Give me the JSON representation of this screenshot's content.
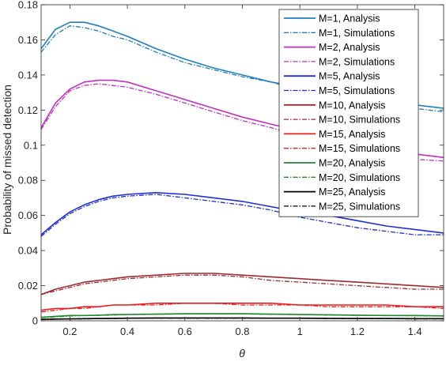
{
  "chart_data": {
    "type": "line",
    "xlabel": "θ",
    "ylabel": "Probability of missed detection",
    "xlim": [
      0.1,
      1.5
    ],
    "ylim": [
      0,
      0.18
    ],
    "x_ticks": [
      0.2,
      0.4,
      0.6,
      0.8,
      1,
      1.2,
      1.4
    ],
    "x_tick_labels": [
      "0.2",
      "0.4",
      "0.6",
      "0.8",
      "1",
      "1.2",
      "1.4"
    ],
    "y_ticks": [
      0,
      0.02,
      0.04,
      0.06,
      0.08,
      0.1,
      0.12,
      0.14,
      0.16,
      0.18
    ],
    "y_tick_labels": [
      "0",
      "0.02",
      "0.04",
      "0.06",
      "0.08",
      "0.1",
      "0.12",
      "0.14",
      "0.16",
      "0.18"
    ],
    "grid": false,
    "legend_position": "top-right",
    "x": [
      0.1,
      0.15,
      0.2,
      0.25,
      0.3,
      0.35,
      0.4,
      0.5,
      0.6,
      0.7,
      0.8,
      0.9,
      1.0,
      1.1,
      1.2,
      1.3,
      1.4,
      1.5
    ],
    "series": [
      {
        "name": "M=1, Analysis",
        "color": "#1f7fc0",
        "style": "solid",
        "values": [
          0.155,
          0.166,
          0.17,
          0.17,
          0.168,
          0.165,
          0.162,
          0.155,
          0.149,
          0.144,
          0.14,
          0.136,
          0.133,
          0.13,
          0.127,
          0.125,
          0.123,
          0.121
        ]
      },
      {
        "name": "M=1, Simulations",
        "color": "#1f7fc0",
        "style": "dashdot",
        "values": [
          0.153,
          0.163,
          0.168,
          0.167,
          0.165,
          0.162,
          0.16,
          0.153,
          0.147,
          0.143,
          0.139,
          0.136,
          0.131,
          0.128,
          0.125,
          0.123,
          0.121,
          0.119
        ]
      },
      {
        "name": "M=2, Analysis",
        "color": "#c22fc2",
        "style": "solid",
        "values": [
          0.11,
          0.124,
          0.132,
          0.136,
          0.137,
          0.137,
          0.136,
          0.131,
          0.126,
          0.121,
          0.116,
          0.112,
          0.108,
          0.104,
          0.1,
          0.097,
          0.095,
          0.093
        ]
      },
      {
        "name": "M=2, Simulations",
        "color": "#c22fc2",
        "style": "dashdot",
        "values": [
          0.109,
          0.122,
          0.131,
          0.134,
          0.135,
          0.134,
          0.133,
          0.129,
          0.124,
          0.119,
          0.114,
          0.11,
          0.105,
          0.101,
          0.097,
          0.094,
          0.092,
          0.091
        ]
      },
      {
        "name": "M=5, Analysis",
        "color": "#1f2fd4",
        "style": "solid",
        "values": [
          0.049,
          0.056,
          0.062,
          0.066,
          0.069,
          0.071,
          0.072,
          0.073,
          0.072,
          0.07,
          0.068,
          0.065,
          0.062,
          0.06,
          0.057,
          0.054,
          0.052,
          0.05
        ]
      },
      {
        "name": "M=5, Simulations",
        "color": "#1f2fd4",
        "style": "dashdot",
        "values": [
          0.048,
          0.055,
          0.061,
          0.065,
          0.068,
          0.07,
          0.071,
          0.072,
          0.07,
          0.068,
          0.066,
          0.063,
          0.059,
          0.056,
          0.053,
          0.051,
          0.049,
          0.049
        ]
      },
      {
        "name": "M=10, Analysis",
        "color": "#9e2a2f",
        "style": "solid",
        "values": [
          0.015,
          0.018,
          0.02,
          0.022,
          0.023,
          0.024,
          0.025,
          0.026,
          0.027,
          0.027,
          0.026,
          0.025,
          0.024,
          0.023,
          0.022,
          0.021,
          0.02,
          0.019
        ]
      },
      {
        "name": "M=10, Simulations",
        "color": "#9e2a2f",
        "style": "dashdot",
        "values": [
          0.015,
          0.017,
          0.019,
          0.021,
          0.022,
          0.023,
          0.024,
          0.025,
          0.026,
          0.026,
          0.025,
          0.023,
          0.022,
          0.021,
          0.02,
          0.019,
          0.018,
          0.018
        ]
      },
      {
        "name": "M=15, Analysis",
        "color": "#ee1c1c",
        "style": "solid",
        "values": [
          0.006,
          0.007,
          0.007,
          0.008,
          0.008,
          0.009,
          0.009,
          0.01,
          0.01,
          0.01,
          0.01,
          0.01,
          0.009,
          0.009,
          0.009,
          0.009,
          0.008,
          0.008
        ]
      },
      {
        "name": "M=15, Simulations",
        "color": "#ee1c1c",
        "style": "dashdot",
        "values": [
          0.005,
          0.006,
          0.007,
          0.007,
          0.008,
          0.009,
          0.009,
          0.009,
          0.01,
          0.01,
          0.009,
          0.009,
          0.009,
          0.008,
          0.008,
          0.008,
          0.008,
          0.007
        ]
      },
      {
        "name": "M=20, Analysis",
        "color": "#1e8a2e",
        "style": "solid",
        "values": [
          0.002,
          0.0025,
          0.003,
          0.003,
          0.0032,
          0.0035,
          0.0036,
          0.0038,
          0.004,
          0.004,
          0.004,
          0.0038,
          0.0036,
          0.0034,
          0.0032,
          0.003,
          0.003,
          0.0028
        ]
      },
      {
        "name": "M=20, Simulations",
        "color": "#1e8a2e",
        "style": "dashdot",
        "values": [
          0.0018,
          0.0022,
          0.0027,
          0.003,
          0.0031,
          0.0033,
          0.0035,
          0.0037,
          0.0039,
          0.0039,
          0.0039,
          0.0037,
          0.0035,
          0.0033,
          0.0031,
          0.003,
          0.0029,
          0.0027
        ]
      },
      {
        "name": "M=25, Analysis",
        "color": "#000000",
        "style": "solid",
        "values": [
          0.0008,
          0.001,
          0.0011,
          0.0012,
          0.0013,
          0.0014,
          0.0015,
          0.0016,
          0.0016,
          0.0016,
          0.0016,
          0.0015,
          0.0015,
          0.0014,
          0.0013,
          0.0013,
          0.0012,
          0.0012
        ]
      },
      {
        "name": "M=25, Simulations",
        "color": "#000000",
        "style": "dashdot",
        "values": [
          0.0007,
          0.0009,
          0.001,
          0.0011,
          0.0012,
          0.0013,
          0.0014,
          0.0015,
          0.0015,
          0.0015,
          0.0015,
          0.0014,
          0.0014,
          0.0013,
          0.0012,
          0.0012,
          0.0011,
          0.0011
        ]
      }
    ]
  }
}
